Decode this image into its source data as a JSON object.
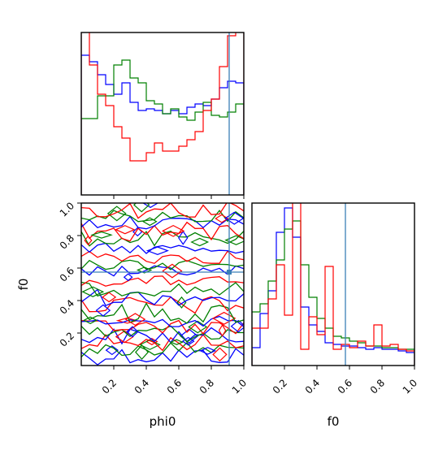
{
  "chart_data": {
    "type": "corner-plot",
    "parameters": [
      "phi0",
      "f0"
    ],
    "truths": {
      "phi0": 0.91,
      "f0": 0.575
    },
    "truth_color": "#3b7fb6",
    "series_colors": [
      "#0000ff",
      "#008000",
      "#ff0000"
    ],
    "axes": {
      "phi0_range": [
        0,
        1
      ],
      "f0_range": [
        0,
        1
      ],
      "x_ticks": [
        "0.2",
        "0.4",
        "0.6",
        "0.8",
        "1.0"
      ],
      "y_ticks": [
        "0.2",
        "0.4",
        "0.6",
        "0.8",
        "1.0"
      ],
      "xlabel_bottom_left": "phi0",
      "xlabel_bottom_right": "f0",
      "ylabel_left": "f0"
    },
    "hist_phi0": {
      "bins": [
        0,
        0.05,
        0.1,
        0.15,
        0.2,
        0.25,
        0.3,
        0.35,
        0.4,
        0.45,
        0.5,
        0.55,
        0.6,
        0.65,
        0.7,
        0.75,
        0.8,
        0.85,
        0.9,
        0.95,
        1.0
      ],
      "series": [
        {
          "values": [
            0.86,
            0.82,
            0.74,
            0.68,
            0.62,
            0.69,
            0.57,
            0.52,
            0.53,
            0.52,
            0.5,
            0.52,
            0.5,
            0.54,
            0.56,
            0.55,
            0.59,
            0.66,
            0.7,
            0.69
          ]
        },
        {
          "values": [
            0.47,
            0.47,
            0.61,
            0.61,
            0.8,
            0.83,
            0.72,
            0.69,
            0.58,
            0.56,
            0.5,
            0.53,
            0.48,
            0.46,
            0.51,
            0.57,
            0.49,
            0.48,
            0.51,
            0.56
          ]
        },
        {
          "values": [
            1.1,
            0.8,
            0.62,
            0.55,
            0.42,
            0.35,
            0.21,
            0.21,
            0.26,
            0.32,
            0.27,
            0.27,
            0.3,
            0.34,
            0.39,
            0.52,
            0.59,
            0.79,
            0.98,
            1.1
          ]
        }
      ]
    },
    "hist_f0": {
      "bins": [
        0,
        0.05,
        0.1,
        0.15,
        0.2,
        0.25,
        0.3,
        0.35,
        0.4,
        0.45,
        0.5,
        0.55,
        0.6,
        0.65,
        0.7,
        0.75,
        0.8,
        0.85,
        0.9,
        0.95,
        1.0
      ],
      "series": [
        {
          "values": [
            0.11,
            0.32,
            0.46,
            0.82,
            0.97,
            0.79,
            0.36,
            0.25,
            0.21,
            0.14,
            0.13,
            0.12,
            0.12,
            0.11,
            0.1,
            0.11,
            0.1,
            0.1,
            0.09,
            0.08
          ]
        },
        {
          "values": [
            0.33,
            0.38,
            0.52,
            0.65,
            0.84,
            0.89,
            0.62,
            0.42,
            0.29,
            0.23,
            0.18,
            0.17,
            0.15,
            0.14,
            0.12,
            0.12,
            0.11,
            0.11,
            0.1,
            0.1
          ]
        },
        {
          "values": [
            0.23,
            0.23,
            0.41,
            0.62,
            0.31,
            1.1,
            0.1,
            0.3,
            0.19,
            0.61,
            0.1,
            0.13,
            0.11,
            0.15,
            0.12,
            0.25,
            0.12,
            0.13,
            0.1,
            0.09
          ]
        }
      ]
    },
    "contour_phi0_f0": {
      "levels_in_f0": [
        0.06,
        0.1,
        0.14,
        0.18,
        0.2,
        0.24,
        0.27,
        0.32,
        0.37,
        0.42,
        0.47,
        0.52,
        0.58,
        0.62,
        0.67,
        0.72,
        0.78,
        0.82,
        0.88,
        0.92,
        0.96
      ],
      "series_colors_in_order": [
        "#0000ff",
        "#008000",
        "#ff0000"
      ]
    }
  }
}
